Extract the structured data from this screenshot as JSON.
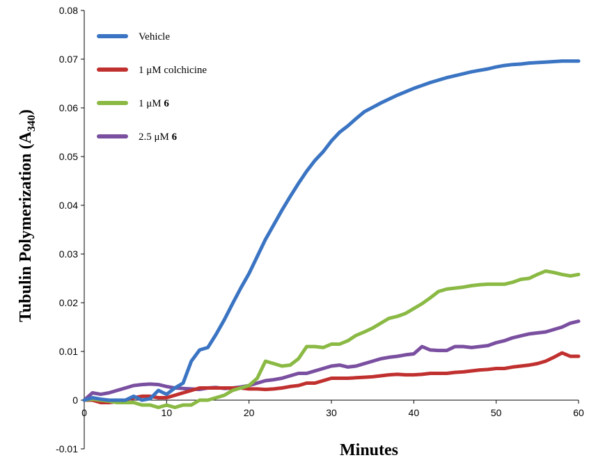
{
  "chart_data": {
    "type": "line",
    "xlabel": "Minutes",
    "ylabel": "Tubulin Polymerization",
    "ylabel_prefix": "(A",
    "ylabel_sub": "340",
    "ylabel_suffix": ")",
    "xlim": [
      0,
      60
    ],
    "ylim": [
      -0.01,
      0.08
    ],
    "x_ticks": [
      0,
      10,
      20,
      30,
      40,
      50,
      60
    ],
    "y_ticks": [
      -0.01,
      0,
      0.01,
      0.02,
      0.03,
      0.04,
      0.05,
      0.06,
      0.07,
      0.08
    ],
    "y_tick_labels": [
      "-0.01",
      "0",
      "0.01",
      "0.02",
      "0.03",
      "0.04",
      "0.05",
      "0.06",
      "0.07",
      "0.08"
    ],
    "grid": false,
    "legend_position": "top-left",
    "x": [
      0,
      1,
      2,
      3,
      4,
      5,
      6,
      7,
      8,
      9,
      10,
      11,
      12,
      13,
      14,
      15,
      16,
      17,
      18,
      19,
      20,
      21,
      22,
      23,
      24,
      25,
      26,
      27,
      28,
      29,
      30,
      31,
      32,
      33,
      34,
      35,
      36,
      37,
      38,
      39,
      40,
      41,
      42,
      43,
      44,
      45,
      46,
      47,
      48,
      49,
      50,
      51,
      52,
      53,
      54,
      55,
      56,
      57,
      58,
      59,
      60
    ],
    "series": [
      {
        "name": "Vehicle",
        "name_prefix": "Vehicle",
        "name_bold": "",
        "color": "#3A74C2",
        "values": [
          0,
          0.0005,
          0.0002,
          0,
          0,
          0,
          0.0008,
          0,
          0.0003,
          0.002,
          0.0012,
          0.0025,
          0.0035,
          0.008,
          0.0103,
          0.0108,
          0.0135,
          0.0165,
          0.0198,
          0.023,
          0.026,
          0.0295,
          0.033,
          0.036,
          0.039,
          0.0418,
          0.0445,
          0.047,
          0.0492,
          0.051,
          0.0532,
          0.055,
          0.0563,
          0.0578,
          0.0592,
          0.0601,
          0.061,
          0.0618,
          0.0626,
          0.0633,
          0.064,
          0.0646,
          0.0652,
          0.0657,
          0.0662,
          0.0666,
          0.067,
          0.0674,
          0.0677,
          0.068,
          0.0684,
          0.0687,
          0.0689,
          0.069,
          0.0692,
          0.0693,
          0.0694,
          0.0695,
          0.0696,
          0.0696,
          0.0696
        ]
      },
      {
        "name": "1 μM colchicine",
        "name_prefix": "1 μM colchicine",
        "name_bold": "",
        "color": "#C0302F",
        "values": [
          0,
          0,
          -0.0005,
          -0.0005,
          -0.0003,
          0,
          0.0005,
          0.0008,
          0.0008,
          0.0005,
          0.0005,
          0.001,
          0.0015,
          0.002,
          0.0025,
          0.0025,
          0.0025,
          0.0025,
          0.0025,
          0.0025,
          0.0023,
          0.0023,
          0.0022,
          0.0023,
          0.0025,
          0.0028,
          0.003,
          0.0035,
          0.0035,
          0.004,
          0.0045,
          0.0045,
          0.0045,
          0.0046,
          0.0047,
          0.0048,
          0.005,
          0.0052,
          0.0053,
          0.0052,
          0.0052,
          0.0053,
          0.0055,
          0.0055,
          0.0055,
          0.0057,
          0.0058,
          0.006,
          0.0062,
          0.0063,
          0.0065,
          0.0065,
          0.0068,
          0.007,
          0.0072,
          0.0075,
          0.008,
          0.0088,
          0.0097,
          0.009,
          0.009
        ]
      },
      {
        "name": "1 μM 6",
        "name_prefix": "1 μM ",
        "name_bold": "6",
        "color": "#8AB944",
        "values": [
          0,
          0.0002,
          0,
          -0.0002,
          -0.0005,
          -0.0005,
          -0.0005,
          -0.001,
          -0.001,
          -0.0015,
          -0.001,
          -0.0015,
          -0.001,
          -0.001,
          0,
          0,
          0.0005,
          0.001,
          0.002,
          0.0025,
          0.003,
          0.0045,
          0.008,
          0.0075,
          0.007,
          0.0072,
          0.0085,
          0.011,
          0.011,
          0.0108,
          0.0115,
          0.0115,
          0.0122,
          0.0133,
          0.014,
          0.0148,
          0.0158,
          0.0168,
          0.0172,
          0.0178,
          0.0188,
          0.0198,
          0.021,
          0.0223,
          0.0228,
          0.023,
          0.0232,
          0.0235,
          0.0237,
          0.0238,
          0.0238,
          0.0238,
          0.0242,
          0.0248,
          0.025,
          0.0258,
          0.0265,
          0.0262,
          0.0258,
          0.0255,
          0.0258
        ]
      },
      {
        "name": "2.5 μM 6",
        "name_prefix": "2.5 μM ",
        "name_bold": "6",
        "color": "#7A4FA0",
        "values": [
          0,
          0.0015,
          0.0012,
          0.0015,
          0.002,
          0.0025,
          0.003,
          0.0032,
          0.0033,
          0.0032,
          0.0028,
          0.0025,
          0.0024,
          0.0023,
          0.0022,
          0.0025,
          0.0026,
          0.0024,
          0.0025,
          0.0027,
          0.003,
          0.0035,
          0.004,
          0.0042,
          0.0045,
          0.005,
          0.0055,
          0.0055,
          0.006,
          0.0065,
          0.007,
          0.0072,
          0.0068,
          0.007,
          0.0075,
          0.008,
          0.0085,
          0.0088,
          0.009,
          0.0093,
          0.0095,
          0.011,
          0.0103,
          0.0102,
          0.0102,
          0.011,
          0.011,
          0.0108,
          0.011,
          0.0112,
          0.0118,
          0.0122,
          0.0128,
          0.0132,
          0.0136,
          0.0138,
          0.014,
          0.0145,
          0.015,
          0.0158,
          0.0162
        ]
      }
    ]
  }
}
